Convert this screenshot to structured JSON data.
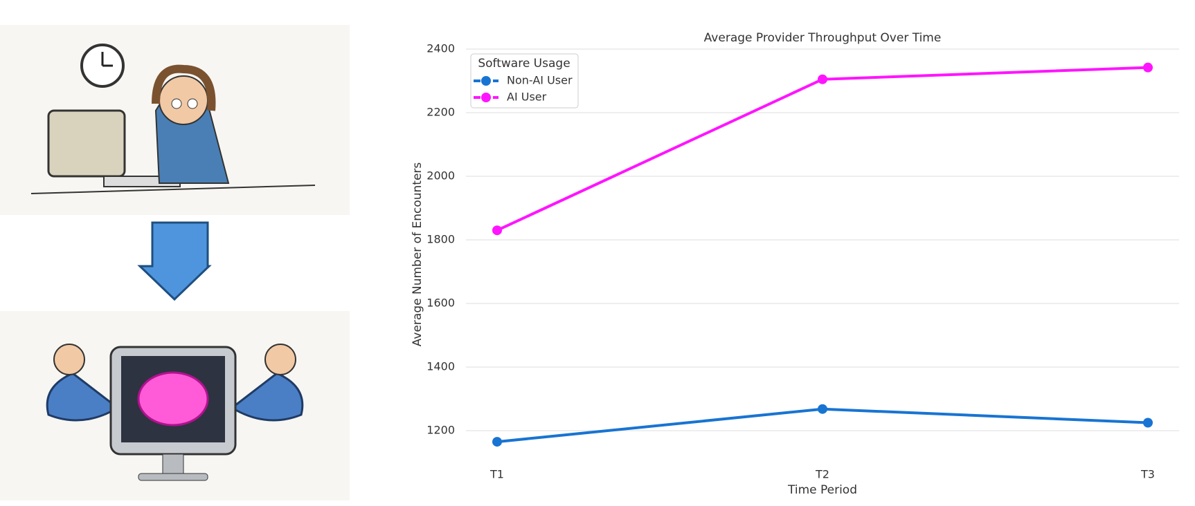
{
  "chart_data": {
    "type": "line",
    "title": "Average Provider Throughput Over Time",
    "x_label": "Time Period",
    "y_label": "Average Number of Encounters",
    "categories": [
      "T1",
      "T2",
      "T3"
    ],
    "series": [
      {
        "name": "Non-AI User",
        "color": "#1874d2",
        "values": [
          1165,
          1268,
          1225
        ]
      },
      {
        "name": "AI User",
        "color": "#ff14ff",
        "values": [
          1830,
          2305,
          2342
        ]
      }
    ],
    "ylim": [
      1100,
      2450
    ],
    "yticks": [
      1200,
      1400,
      1600,
      1800,
      2000,
      2200,
      2400
    ],
    "grid": true,
    "legend_title": "Software Usage",
    "legend_position": "upper-left"
  }
}
